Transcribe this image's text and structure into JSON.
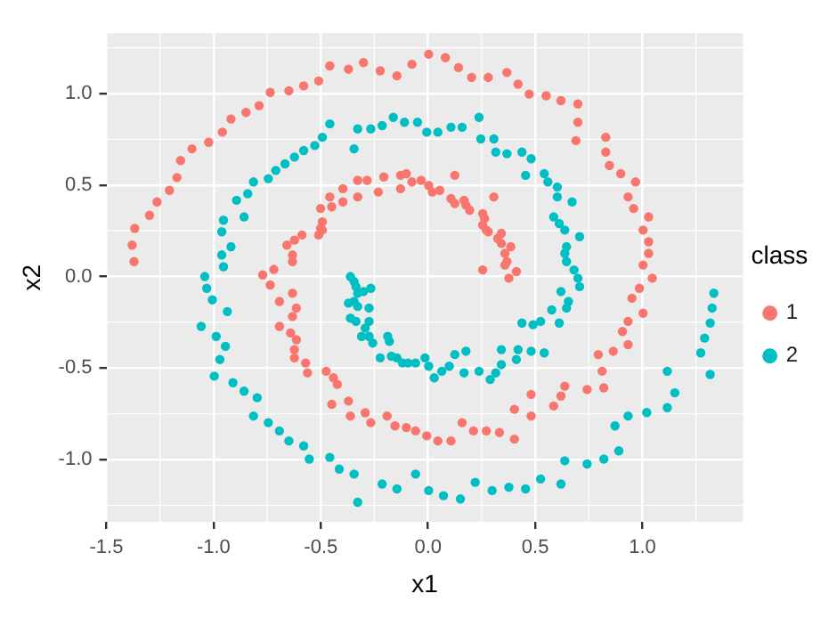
{
  "chart_data": {
    "type": "scatter",
    "xlabel": "x1",
    "ylabel": "x2",
    "legend_title": "class",
    "legend": "right",
    "grid": true,
    "marker": "circle",
    "xlim": [
      -1.5,
      1.47
    ],
    "ylim": [
      -1.34,
      1.33
    ],
    "xticks": [
      -1.5,
      {
        "value": -1,
        "label": "-1.0"
      },
      -0.5,
      {
        "value": 0,
        "label": "0.0"
      },
      0.5,
      {
        "value": 1,
        "label": "1.0"
      }
    ],
    "yticks": [
      {
        "value": -1,
        "label": "-1.0"
      },
      -0.5,
      {
        "value": 0,
        "label": "0.0"
      },
      0.5,
      {
        "value": 1,
        "label": "1.0"
      }
    ],
    "series": [
      {
        "name": "1",
        "color": "#f8766d",
        "x": [
          -1.371,
          -1.38,
          -1.368,
          -1.299,
          -1.264,
          -1.206,
          -1.171,
          -1.154,
          -1.101,
          -1.023,
          -0.959,
          -0.919,
          -0.849,
          -0.788,
          -0.736,
          -0.649,
          -0.58,
          -0.51,
          -0.458,
          -0.371,
          -0.301,
          -0.223,
          -0.145,
          -0.075,
          0.003,
          0.081,
          0.142,
          0.203,
          0.281,
          0.368,
          0.42,
          0.472,
          0.551,
          0.62,
          0.699,
          0.699,
          0.69,
          0.829,
          0.829,
          0.846,
          0.899,
          0.968,
          0.933,
          0.959,
          1.029,
          1.003,
          1.029,
          1.029,
          1.003,
          1.046,
          0.986,
          0.951,
          1.003,
          0.933,
          0.907,
          0.933,
          0.864,
          0.794,
          0.812,
          0.82,
          0.742,
          0.638,
          0.62,
          0.586,
          0.481,
          0.481,
          0.403,
          0.403,
          0.333,
          0.272,
          0.212,
          0.159,
          0.107,
          0.046,
          -0.006,
          -0.058,
          -0.101,
          -0.154,
          -0.191,
          -0.267,
          -0.293,
          -0.362,
          -0.371,
          -0.449,
          -0.423,
          -0.441,
          -0.475,
          -0.562,
          -0.571,
          -0.623,
          -0.623,
          -0.614,
          -0.641,
          -0.693,
          -0.614,
          -0.632,
          -0.632,
          -0.693,
          -0.736,
          -0.719,
          -0.771,
          -0.658,
          -0.632,
          -0.632,
          -0.623,
          -0.588,
          -0.51,
          -0.501,
          -0.501,
          -0.493,
          -0.493,
          -0.458,
          -0.449,
          -0.397,
          -0.397,
          -0.328,
          -0.328,
          -0.284,
          -0.232,
          -0.206,
          -0.128,
          -0.101,
          -0.128,
          -0.075,
          -0.032,
          0.003,
          0.02,
          0.055,
          0.125,
          0.107,
          0.125,
          0.168,
          0.177,
          0.194,
          0.255,
          0.264,
          0.255,
          0.272,
          0.281,
          0.307,
          0.342,
          0.325,
          0.342,
          0.386,
          0.359,
          0.368,
          0.359,
          0.412,
          0.255,
          0.377
        ],
        "values": [
          0.082,
          0.172,
          0.263,
          0.335,
          0.408,
          0.471,
          0.541,
          0.634,
          0.698,
          0.734,
          0.789,
          0.861,
          0.897,
          0.934,
          1.006,
          1.015,
          1.042,
          1.069,
          1.151,
          1.133,
          1.169,
          1.124,
          1.097,
          1.16,
          1.215,
          1.196,
          1.142,
          1.088,
          1.088,
          1.115,
          1.051,
          0.997,
          0.988,
          0.961,
          0.943,
          0.843,
          0.743,
          0.761,
          0.68,
          0.607,
          0.562,
          0.517,
          0.435,
          0.372,
          0.326,
          0.254,
          0.19,
          0.127,
          0.063,
          -0.009,
          -0.064,
          -0.118,
          -0.2,
          -0.245,
          -0.3,
          -0.372,
          -0.408,
          -0.426,
          -0.517,
          -0.608,
          -0.617,
          -0.599,
          -0.653,
          -0.707,
          -0.644,
          -0.762,
          -0.725,
          -0.888,
          -0.852,
          -0.843,
          -0.843,
          -0.798,
          -0.898,
          -0.898,
          -0.87,
          -0.843,
          -0.825,
          -0.816,
          -0.762,
          -0.798,
          -0.744,
          -0.762,
          -0.68,
          -0.698,
          -0.589,
          -0.553,
          -0.517,
          -0.526,
          -0.472,
          -0.444,
          -0.399,
          -0.345,
          -0.308,
          -0.272,
          -0.172,
          -0.218,
          -0.091,
          -0.136,
          -0.046,
          0.039,
          0.009,
          0.172,
          0.118,
          0.082,
          0.199,
          0.227,
          0.227,
          0.263,
          0.372,
          0.299,
          0.254,
          0.435,
          0.381,
          0.48,
          0.408,
          0.435,
          0.526,
          0.526,
          0.462,
          0.544,
          0.553,
          0.562,
          0.48,
          0.517,
          0.526,
          0.498,
          0.462,
          0.471,
          0.553,
          0.426,
          0.399,
          0.417,
          0.39,
          0.363,
          0.344,
          0.317,
          0.281,
          0.254,
          0.245,
          0.435,
          0.236,
          0.208,
          0.181,
          0.163,
          0.127,
          0.082,
          0.063,
          0.027,
          0.036,
          -0.009
        ]
      },
      {
        "name": "2",
        "color": "#00bfc4",
        "x": [
          -1.041,
          -0.954,
          -0.962,
          -0.919,
          -0.962,
          -0.954,
          -0.858,
          -0.893,
          -0.841,
          -0.814,
          -0.745,
          -0.71,
          -0.667,
          -0.623,
          -0.58,
          -0.528,
          -0.493,
          -0.458,
          -0.345,
          -0.328,
          -0.267,
          -0.214,
          -0.162,
          -0.11,
          -0.049,
          -0.006,
          0.046,
          0.107,
          0.159,
          0.238,
          0.246,
          0.307,
          0.316,
          0.368,
          0.438,
          0.481,
          0.455,
          0.542,
          0.559,
          0.603,
          0.603,
          0.672,
          0.586,
          0.612,
          0.638,
          0.707,
          0.646,
          0.638,
          0.646,
          0.681,
          0.699,
          0.707,
          0.655,
          0.646,
          0.577,
          0.62,
          0.612,
          0.525,
          0.49,
          0.438,
          0.542,
          0.481,
          0.42,
          0.412,
          0.342,
          0.342,
          0.316,
          0.29,
          0.238,
          0.168,
          0.177,
          0.125,
          0.099,
          0.064,
          0.029,
          0.003,
          -0.014,
          -0.058,
          -0.093,
          -0.119,
          -0.145,
          -0.145,
          -0.058,
          0.003,
          0.072,
          0.151,
          0.22,
          0.299,
          0.377,
          0.455,
          0.525,
          0.62,
          0.638,
          0.742,
          0.82,
          0.89,
          0.872,
          0.933,
          1.02,
          1.116,
          1.151,
          1.116,
          1.316,
          1.272,
          1.29,
          1.316,
          1.325,
          1.333,
          -1.032,
          -1.006,
          -0.936,
          -1.058,
          -0.988,
          -0.945,
          -0.971,
          -0.997,
          -0.91,
          -0.858,
          -0.797,
          -0.814,
          -0.745,
          -0.693,
          -0.649,
          -0.58,
          -0.554,
          -0.458,
          -0.414,
          -0.345,
          -0.328,
          -0.214,
          -0.362,
          -0.345,
          -0.336,
          -0.328,
          -0.301,
          -0.267,
          -0.371,
          -0.345,
          -0.328,
          -0.275,
          -0.362,
          -0.336,
          -0.275,
          -0.293,
          -0.31,
          -0.275,
          -0.258,
          -0.223,
          -0.188,
          -0.18,
          -0.171
        ],
        "values": [
          0,
          0.054,
          0.118,
          0.163,
          0.245,
          0.308,
          0.326,
          0.417,
          0.453,
          0.517,
          0.535,
          0.58,
          0.616,
          0.653,
          0.689,
          0.716,
          0.761,
          0.834,
          0.698,
          0.807,
          0.807,
          0.825,
          0.87,
          0.843,
          0.843,
          0.789,
          0.789,
          0.816,
          0.816,
          0.87,
          0.752,
          0.752,
          0.68,
          0.671,
          0.68,
          0.644,
          0.553,
          0.562,
          0.517,
          0.489,
          0.435,
          0.408,
          0.326,
          0.29,
          0.254,
          0.218,
          0.163,
          0.127,
          0.082,
          0.036,
          -0.009,
          -0.055,
          -0.136,
          -0.172,
          -0.182,
          -0.082,
          -0.254,
          -0.245,
          -0.263,
          -0.254,
          -0.417,
          -0.408,
          -0.399,
          -0.453,
          -0.399,
          -0.481,
          -0.526,
          -0.562,
          -0.517,
          -0.526,
          -0.408,
          -0.426,
          -0.49,
          -0.517,
          -0.553,
          -0.49,
          -0.444,
          -0.472,
          -0.472,
          -0.472,
          -0.444,
          -1.16,
          -1.079,
          -1.169,
          -1.197,
          -1.215,
          -1.124,
          -1.169,
          -1.151,
          -1.16,
          -1.106,
          -1.133,
          -1.006,
          -1.024,
          -0.997,
          -0.952,
          -0.816,
          -0.762,
          -0.743,
          -0.716,
          -0.635,
          -0.517,
          -0.535,
          -0.417,
          -0.336,
          -0.254,
          -0.172,
          -0.091,
          -0.064,
          -0.127,
          -0.191,
          -0.272,
          -0.327,
          -0.381,
          -0.453,
          -0.544,
          -0.58,
          -0.626,
          -0.662,
          -0.762,
          -0.798,
          -0.843,
          -0.898,
          -0.925,
          -0.997,
          -0.988,
          -1.052,
          -1.079,
          -1.233,
          -1.133,
          0,
          -0.027,
          -0.055,
          -0.091,
          -0.082,
          -0.064,
          -0.145,
          -0.136,
          -0.163,
          -0.172,
          -0.227,
          -0.245,
          -0.245,
          -0.281,
          -0.327,
          -0.327,
          -0.363,
          -0.444,
          -0.327,
          -0.354,
          -0.435
        ]
      }
    ]
  }
}
